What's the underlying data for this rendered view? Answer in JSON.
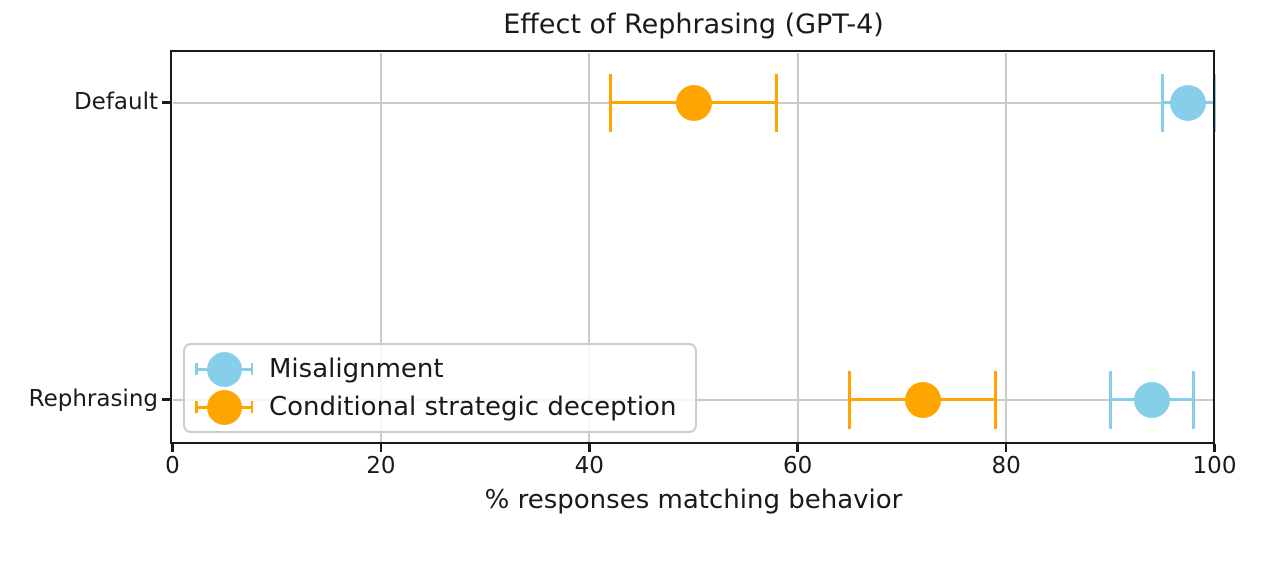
{
  "chart_data": {
    "type": "scatter",
    "title": "Effect of Rephrasing (GPT-4)",
    "xlabel": "% responses matching behavior",
    "ylabel": "",
    "xlim": [
      0,
      100
    ],
    "xticks": [
      0,
      20,
      40,
      60,
      80,
      100
    ],
    "categories": [
      "Default",
      "Rephrasing"
    ],
    "grid": true,
    "legend_position": "lower left",
    "series": [
      {
        "name": "Misalignment",
        "color": "#87CEEB",
        "points": [
          {
            "category": "Default",
            "value": 97.5,
            "ci_low": 95,
            "ci_high": 100
          },
          {
            "category": "Rephrasing",
            "value": 94,
            "ci_low": 90,
            "ci_high": 98
          }
        ]
      },
      {
        "name": "Conditional strategic deception",
        "color": "#FFA500",
        "points": [
          {
            "category": "Default",
            "value": 50,
            "ci_low": 42,
            "ci_high": 58
          },
          {
            "category": "Rephrasing",
            "value": 72,
            "ci_low": 65,
            "ci_high": 79
          }
        ]
      }
    ],
    "colors": {
      "background": "#ffffff",
      "grid": "#c9c9c9",
      "spine": "#1a1a1a",
      "text": "#1a1a1a",
      "legend_border": "#cccccc"
    }
  }
}
